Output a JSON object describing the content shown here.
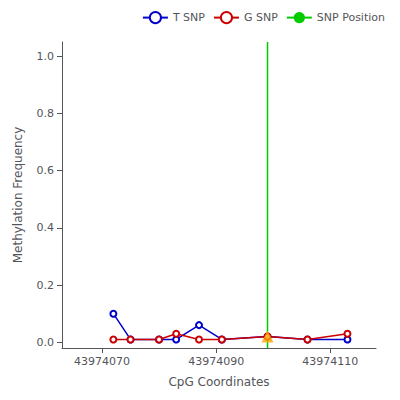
{
  "chart_data": {
    "type": "line",
    "xlabel": "CpG Coordinates",
    "ylabel": "Methylation Frequency",
    "xlim": [
      43974063,
      43974118
    ],
    "xticks": [
      43974070,
      43974090,
      43974110
    ],
    "ylim": [
      -0.02,
      1.05
    ],
    "yticks": [
      {
        "value": 0.0,
        "label": "0.0"
      },
      0.2,
      0.4,
      0.6,
      0.8,
      {
        "value": 1.0,
        "label": "1.0"
      }
    ],
    "grid": false,
    "legend": "upper right",
    "series": [
      {
        "name": "T SNP",
        "type": "line",
        "color": "#0000cc",
        "marker": "circle",
        "x": [
          43974072,
          43974075,
          43974080,
          43974083,
          43974087,
          43974091,
          43974099,
          43974106,
          43974113
        ],
        "values": [
          0.1,
          0.01,
          0.01,
          0.01,
          0.06,
          0.01,
          0.02,
          0.01,
          0.01
        ]
      },
      {
        "name": "G SNP",
        "type": "line",
        "color": "#cc0000",
        "marker": "circle",
        "x": [
          43974072,
          43974075,
          43974080,
          43974083,
          43974087,
          43974091,
          43974099,
          43974106,
          43974113
        ],
        "values": [
          0.01,
          0.01,
          0.01,
          0.03,
          0.01,
          0.01,
          0.02,
          0.01,
          0.03
        ]
      },
      {
        "name": "SNP Position",
        "type": "vline",
        "color": "#00cc00",
        "x": 43974099
      },
      {
        "type": "scatter",
        "color": "#FFA500",
        "marker": "triangle",
        "x": [
          43974099
        ],
        "values": [
          0.02
        ]
      }
    ]
  }
}
